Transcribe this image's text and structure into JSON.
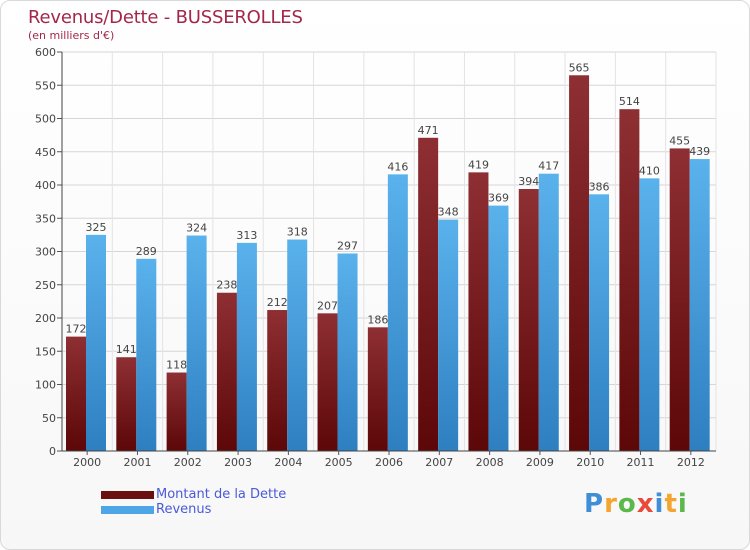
{
  "chart_data": {
    "type": "bar",
    "title": "Revenus/Dette - BUSSEROLLES",
    "subtitle": "(en milliers d'€)",
    "categories": [
      "2000",
      "2001",
      "2002",
      "2003",
      "2004",
      "2005",
      "2006",
      "2007",
      "2008",
      "2009",
      "2010",
      "2011",
      "2012"
    ],
    "series": [
      {
        "name": "Montant de la Dette",
        "color": "#7b1c1c",
        "values": [
          172,
          141,
          118,
          238,
          212,
          207,
          186,
          471,
          419,
          394,
          565,
          514,
          455
        ]
      },
      {
        "name": "Revenus",
        "color": "#4ea6e6",
        "values": [
          325,
          289,
          324,
          313,
          318,
          297,
          416,
          348,
          369,
          417,
          386,
          410,
          439
        ]
      }
    ],
    "ylim": [
      0,
      600
    ],
    "yticks": [
      0,
      50,
      100,
      150,
      200,
      250,
      300,
      350,
      400,
      450,
      500,
      550,
      600
    ],
    "grid": true,
    "legend_position": "bottom-left"
  },
  "brand": {
    "letters": [
      "P",
      "r",
      "o",
      "x",
      "i",
      "t",
      "i"
    ],
    "colors": [
      "#3f8ed6",
      "#f3a530",
      "#5bb84a",
      "#e94a3c",
      "#3f8ed6",
      "#f3a530",
      "#5bb84a"
    ]
  }
}
